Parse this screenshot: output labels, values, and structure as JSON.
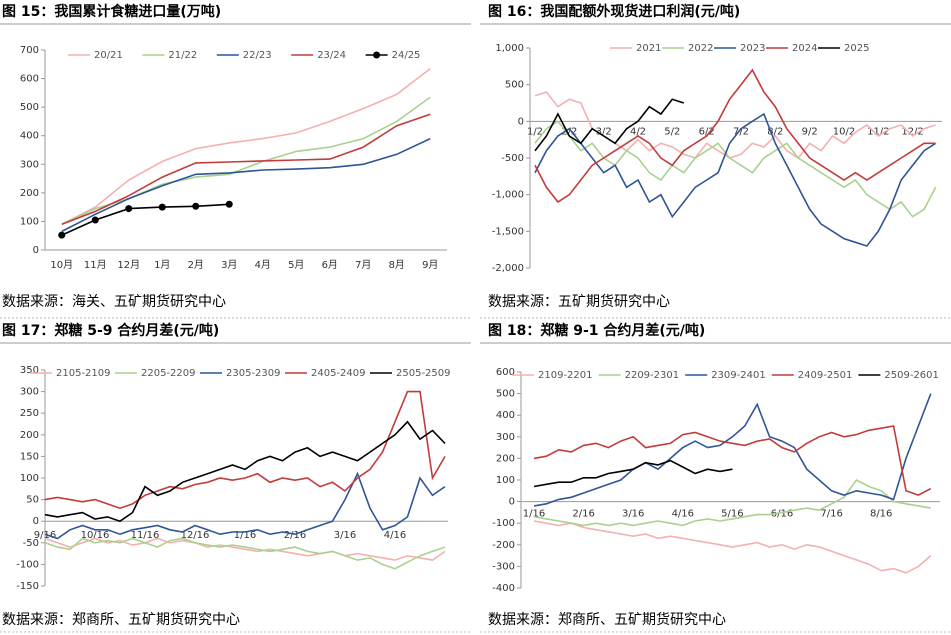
{
  "chart_data": [
    {
      "type": "line",
      "title": "图 15：我国累计食糖进口量(万吨)",
      "source": "数据来源：海关、五矿期货研究中心",
      "categories": [
        "10月",
        "11月",
        "12月",
        "1月",
        "2月",
        "3月",
        "4月",
        "5月",
        "6月",
        "7月",
        "8月",
        "9月"
      ],
      "ylim": [
        0,
        700
      ],
      "yticks": [
        0,
        100,
        200,
        300,
        400,
        500,
        600,
        700
      ],
      "legend": "top",
      "series": [
        {
          "name": "20/21",
          "color": "#f4b0b0",
          "values": [
            90,
            150,
            245,
            310,
            355,
            375,
            390,
            410,
            450,
            495,
            545,
            635
          ]
        },
        {
          "name": "21/22",
          "color": "#a9d18e",
          "values": [
            90,
            145,
            180,
            230,
            255,
            265,
            310,
            345,
            360,
            390,
            450,
            535
          ]
        },
        {
          "name": "22/23",
          "color": "#2f5597",
          "values": [
            65,
            125,
            180,
            225,
            265,
            270,
            280,
            283,
            288,
            300,
            335,
            390
          ]
        },
        {
          "name": "23/24",
          "color": "#c33b3b",
          "values": [
            90,
            135,
            190,
            255,
            305,
            308,
            312,
            315,
            318,
            360,
            435,
            475
          ]
        },
        {
          "name": "24/25",
          "color": "#000000",
          "marker": true,
          "values": [
            52,
            105,
            145,
            150,
            153,
            160,
            null,
            null,
            null,
            null,
            null,
            null
          ]
        }
      ]
    },
    {
      "type": "line",
      "title": "图 16：我国配额外现货进口利润(元/吨)",
      "source": "数据来源：五矿期货研究中心",
      "categories": [
        "1/2",
        null,
        null,
        "2/2",
        null,
        null,
        "3/2",
        null,
        null,
        "4/2",
        null,
        null,
        "5/2",
        null,
        null,
        "6/2",
        null,
        null,
        "7/2",
        null,
        null,
        "8/2",
        null,
        null,
        "9/2",
        null,
        null,
        "10/2",
        null,
        null,
        "11/2",
        null,
        null,
        "12/2",
        null,
        null
      ],
      "ylim": [
        -2000,
        1000
      ],
      "yticks": [
        {
          "value": 1000,
          "label": "1,000"
        },
        500,
        0,
        -500,
        {
          "value": -1000,
          "label": "-1,000"
        },
        {
          "value": -1500,
          "label": "-1,500"
        },
        {
          "value": -2000,
          "label": "-2,000"
        }
      ],
      "legend": "top",
      "series": [
        {
          "name": "2021",
          "color": "#f4b0b0",
          "values": [
            350,
            400,
            200,
            300,
            250,
            -100,
            -200,
            -300,
            -400,
            -250,
            -400,
            -300,
            -350,
            -450,
            -500,
            -300,
            -400,
            -500,
            -450,
            -300,
            -350,
            -200,
            -400,
            -500,
            -300,
            -400,
            -200,
            -300,
            -150,
            -50,
            -200,
            -100,
            -50,
            -200,
            -100,
            -50
          ]
        },
        {
          "name": "2022",
          "color": "#a9d18e",
          "values": [
            -300,
            -100,
            0,
            -200,
            -400,
            -300,
            -500,
            -600,
            -400,
            -500,
            -700,
            -800,
            -600,
            -700,
            -500,
            -400,
            -300,
            -500,
            -600,
            -700,
            -500,
            -400,
            -300,
            -500,
            -600,
            -700,
            -800,
            -900,
            -800,
            -1000,
            -1100,
            -1200,
            -1100,
            -1300,
            -1200,
            -900
          ]
        },
        {
          "name": "2023",
          "color": "#2f5597",
          "values": [
            -700,
            -400,
            -200,
            -100,
            -300,
            -500,
            -700,
            -600,
            -900,
            -800,
            -1100,
            -1000,
            -1300,
            -1100,
            -900,
            -800,
            -700,
            -300,
            -100,
            0,
            100,
            -300,
            -600,
            -900,
            -1200,
            -1400,
            -1500,
            -1600,
            -1650,
            -1700,
            -1500,
            -1200,
            -800,
            -600,
            -400,
            -300
          ]
        },
        {
          "name": "2024",
          "color": "#c33b3b",
          "values": [
            -600,
            -900,
            -1100,
            -1000,
            -800,
            -600,
            -500,
            -400,
            -300,
            -200,
            -300,
            -500,
            -600,
            -400,
            -300,
            -200,
            0,
            300,
            500,
            700,
            400,
            200,
            -100,
            -300,
            -500,
            -600,
            -700,
            -800,
            -700,
            -800,
            -700,
            -600,
            -500,
            -400,
            -300,
            -300
          ]
        },
        {
          "name": "2025",
          "color": "#000000",
          "values": [
            -400,
            -200,
            100,
            -200,
            -300,
            -100,
            -200,
            -300,
            -100,
            0,
            200,
            100,
            300,
            250,
            null,
            null,
            null,
            null,
            null,
            null,
            null,
            null,
            null,
            null,
            null,
            null,
            null,
            null,
            null,
            null,
            null,
            null,
            null,
            null,
            null,
            null
          ]
        }
      ]
    },
    {
      "type": "line",
      "title": "图 17：郑糖 5-9 合约月差(元/吨)",
      "source": "数据来源：郑商所、五矿期货研究中心",
      "categories": [
        "9/16",
        null,
        null,
        null,
        "10/16",
        null,
        null,
        null,
        "11/16",
        null,
        null,
        null,
        "12/16",
        null,
        null,
        null,
        "1/16",
        null,
        null,
        null,
        "2/16",
        null,
        null,
        null,
        "3/16",
        null,
        null,
        null,
        "4/16",
        null,
        null,
        null,
        null
      ],
      "ylim": [
        -150,
        350
      ],
      "yticks": [
        -150,
        -100,
        -50,
        0,
        50,
        100,
        150,
        200,
        250,
        300,
        350
      ],
      "legend": "top",
      "series": [
        {
          "name": "2105-2109",
          "color": "#f4b0b0",
          "values": [
            -40,
            -50,
            -60,
            -50,
            -40,
            -50,
            -45,
            -55,
            -50,
            -40,
            -50,
            -45,
            -50,
            -60,
            -55,
            -60,
            -65,
            -70,
            -65,
            -70,
            -75,
            -80,
            -75,
            -70,
            -80,
            -75,
            -80,
            -85,
            -90,
            -80,
            -85,
            -90,
            -70
          ]
        },
        {
          "name": "2205-2209",
          "color": "#a9d18e",
          "values": [
            -50,
            -60,
            -65,
            -40,
            -50,
            -45,
            -50,
            -40,
            -50,
            -60,
            -45,
            -40,
            -50,
            -55,
            -60,
            -55,
            -60,
            -65,
            -70,
            -65,
            -60,
            -70,
            -75,
            -70,
            -80,
            -90,
            -85,
            -100,
            -110,
            -95,
            -80,
            -70,
            -60
          ]
        },
        {
          "name": "2305-2309",
          "color": "#2f5597",
          "values": [
            -30,
            -40,
            -20,
            -10,
            -20,
            -20,
            -30,
            -20,
            -15,
            -10,
            -20,
            -25,
            -10,
            -20,
            -30,
            -25,
            -25,
            -20,
            -30,
            -25,
            -30,
            -20,
            -10,
            0,
            50,
            110,
            30,
            -20,
            -10,
            10,
            100,
            60,
            80
          ]
        },
        {
          "name": "2405-2409",
          "color": "#c33b3b",
          "values": [
            50,
            55,
            50,
            45,
            50,
            40,
            30,
            40,
            60,
            70,
            80,
            75,
            85,
            90,
            100,
            95,
            100,
            110,
            90,
            100,
            95,
            100,
            80,
            90,
            70,
            100,
            120,
            160,
            230,
            300,
            300,
            100,
            150
          ]
        },
        {
          "name": "2505-2509",
          "color": "#000000",
          "values": [
            15,
            10,
            15,
            20,
            5,
            10,
            0,
            20,
            80,
            60,
            70,
            90,
            100,
            110,
            120,
            130,
            120,
            140,
            150,
            140,
            160,
            170,
            150,
            160,
            150,
            140,
            160,
            180,
            200,
            230,
            190,
            210,
            180
          ]
        }
      ]
    },
    {
      "type": "line",
      "title": "图 18：郑糖 9-1 合约月差(元/吨)",
      "source": "数据来源：郑商所、五矿期货研究中心",
      "categories": [
        "1/16",
        null,
        null,
        null,
        "2/16",
        null,
        null,
        null,
        "3/16",
        null,
        null,
        null,
        "4/16",
        null,
        null,
        null,
        "5/16",
        null,
        null,
        null,
        "6/16",
        null,
        null,
        null,
        "7/16",
        null,
        null,
        null,
        "8/16",
        null,
        null,
        null,
        null
      ],
      "ylim": [
        -400,
        600
      ],
      "yticks": [
        -400,
        -300,
        -200,
        -100,
        0,
        100,
        200,
        300,
        400,
        500,
        600
      ],
      "legend": "top",
      "series": [
        {
          "name": "2109-2201",
          "color": "#f4b0b0",
          "values": [
            -90,
            -100,
            -110,
            -100,
            -120,
            -130,
            -140,
            -150,
            -160,
            -150,
            -170,
            -160,
            -170,
            -180,
            -190,
            -200,
            -210,
            -200,
            -190,
            -210,
            -200,
            -220,
            -200,
            -210,
            -230,
            -250,
            -270,
            -290,
            -320,
            -310,
            -330,
            -300,
            -250
          ]
        },
        {
          "name": "2209-2301",
          "color": "#a9d18e",
          "values": [
            -70,
            -80,
            -90,
            -100,
            -110,
            -100,
            -110,
            -100,
            -110,
            -100,
            -90,
            -100,
            -110,
            -90,
            -80,
            -90,
            -80,
            -70,
            -60,
            -60,
            -50,
            -40,
            -30,
            -40,
            -10,
            20,
            100,
            70,
            50,
            0,
            -10,
            -20,
            -30
          ]
        },
        {
          "name": "2309-2401",
          "color": "#2f5597",
          "values": [
            -20,
            -10,
            10,
            20,
            40,
            60,
            80,
            100,
            150,
            180,
            150,
            200,
            250,
            280,
            250,
            260,
            300,
            350,
            450,
            300,
            280,
            250,
            150,
            100,
            50,
            30,
            50,
            40,
            30,
            10,
            200,
            350,
            500
          ]
        },
        {
          "name": "2409-2501",
          "color": "#c33b3b",
          "values": [
            200,
            210,
            240,
            230,
            260,
            270,
            250,
            280,
            300,
            250,
            260,
            270,
            310,
            320,
            300,
            280,
            270,
            260,
            280,
            290,
            250,
            230,
            270,
            300,
            320,
            300,
            310,
            330,
            340,
            350,
            50,
            30,
            60
          ]
        },
        {
          "name": "2509-2601",
          "color": "#000000",
          "values": [
            70,
            80,
            90,
            90,
            110,
            110,
            130,
            140,
            150,
            180,
            170,
            190,
            160,
            130,
            150,
            140,
            150,
            null,
            null,
            null,
            null,
            null,
            null,
            null,
            null,
            null,
            null,
            null,
            null,
            null,
            null,
            null,
            null
          ]
        }
      ]
    }
  ]
}
